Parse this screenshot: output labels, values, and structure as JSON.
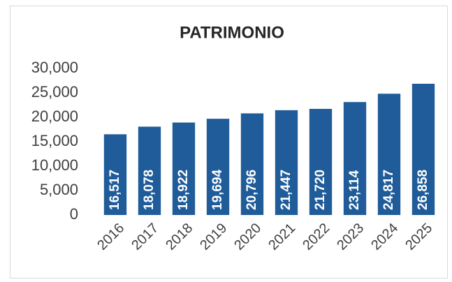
{
  "chart_data": {
    "type": "bar",
    "title": "PATRIMONIO",
    "categories": [
      "2016",
      "2017",
      "2018",
      "2019",
      "2020",
      "2021",
      "2022",
      "2023",
      "2024",
      "2025"
    ],
    "values": [
      16517,
      18078,
      18922,
      19694,
      20796,
      21447,
      21720,
      23114,
      24817,
      26858
    ],
    "value_labels": [
      "16,517",
      "18,078",
      "18,922",
      "19,694",
      "20,796",
      "21,447",
      "21,720",
      "23,114",
      "24,817",
      "26,858"
    ],
    "color": "#1f5c99",
    "ylim": [
      0,
      30000
    ],
    "yticks": [
      0,
      {
        "value": 5000,
        "label": "5,000"
      },
      {
        "value": 10000,
        "label": "10,000"
      },
      {
        "value": 15000,
        "label": "15,000"
      },
      {
        "value": 20000,
        "label": "20,000"
      },
      {
        "value": 25000,
        "label": "25,000"
      },
      {
        "value": 30000,
        "label": "30,000"
      }
    ],
    "grid": false
  }
}
